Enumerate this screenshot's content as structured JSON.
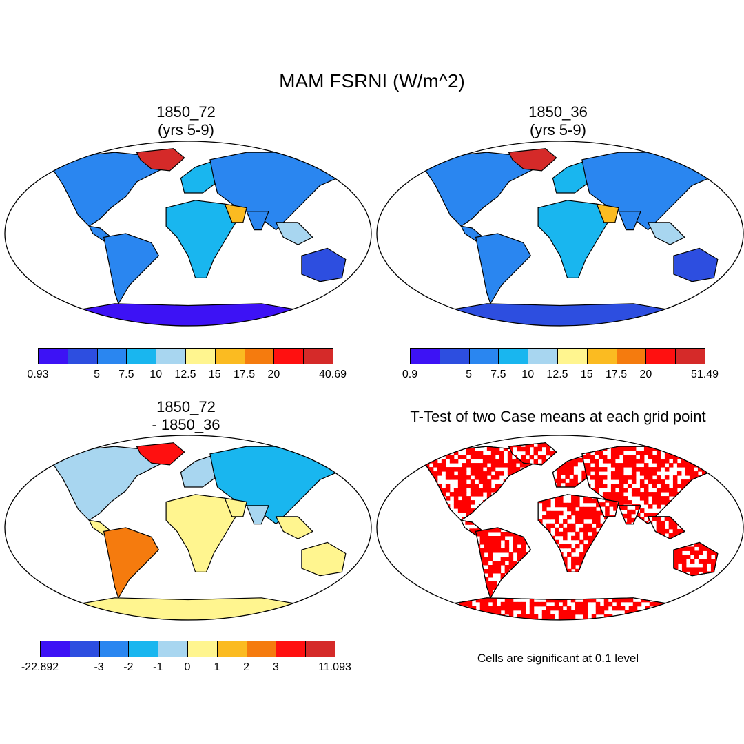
{
  "title": "MAM FSRNI (W/m^2)",
  "colors": [
    "#3d12f5",
    "#2d4ee0",
    "#2a86f0",
    "#19b6ef",
    "#a8d6f0",
    "#fff58f",
    "#fbbb21",
    "#f57b0e",
    "#ff1010",
    "#d52a29"
  ],
  "panels": [
    {
      "title_line1": "1850_72",
      "title_line2": "(yrs 5-9)",
      "colorbar": {
        "labels": [
          "0.93",
          "5",
          "7.5",
          "10",
          "12.5",
          "15",
          "17.5",
          "20",
          "40.69"
        ],
        "label_edges": [
          0,
          2,
          3,
          4,
          5,
          6,
          7,
          8,
          10
        ]
      }
    },
    {
      "title_line1": "1850_36",
      "title_line2": "(yrs 5-9)",
      "colorbar": {
        "labels": [
          "0.9",
          "5",
          "7.5",
          "10",
          "12.5",
          "15",
          "17.5",
          "20",
          "51.49"
        ],
        "label_edges": [
          0,
          2,
          3,
          4,
          5,
          6,
          7,
          8,
          10
        ]
      }
    },
    {
      "title_line1": "1850_72",
      "title_line2": "- 1850_36",
      "colorbar": {
        "labels": [
          "-22.892",
          "-3",
          "-2",
          "-1",
          "0",
          "1",
          "2",
          "3",
          "11.093"
        ],
        "label_edges": [
          0,
          2,
          3,
          4,
          5,
          6,
          7,
          8,
          10
        ]
      }
    },
    {
      "title": "T-Test of two Case means at each grid point",
      "note": "Cells are significant at 0.1 level"
    }
  ]
}
